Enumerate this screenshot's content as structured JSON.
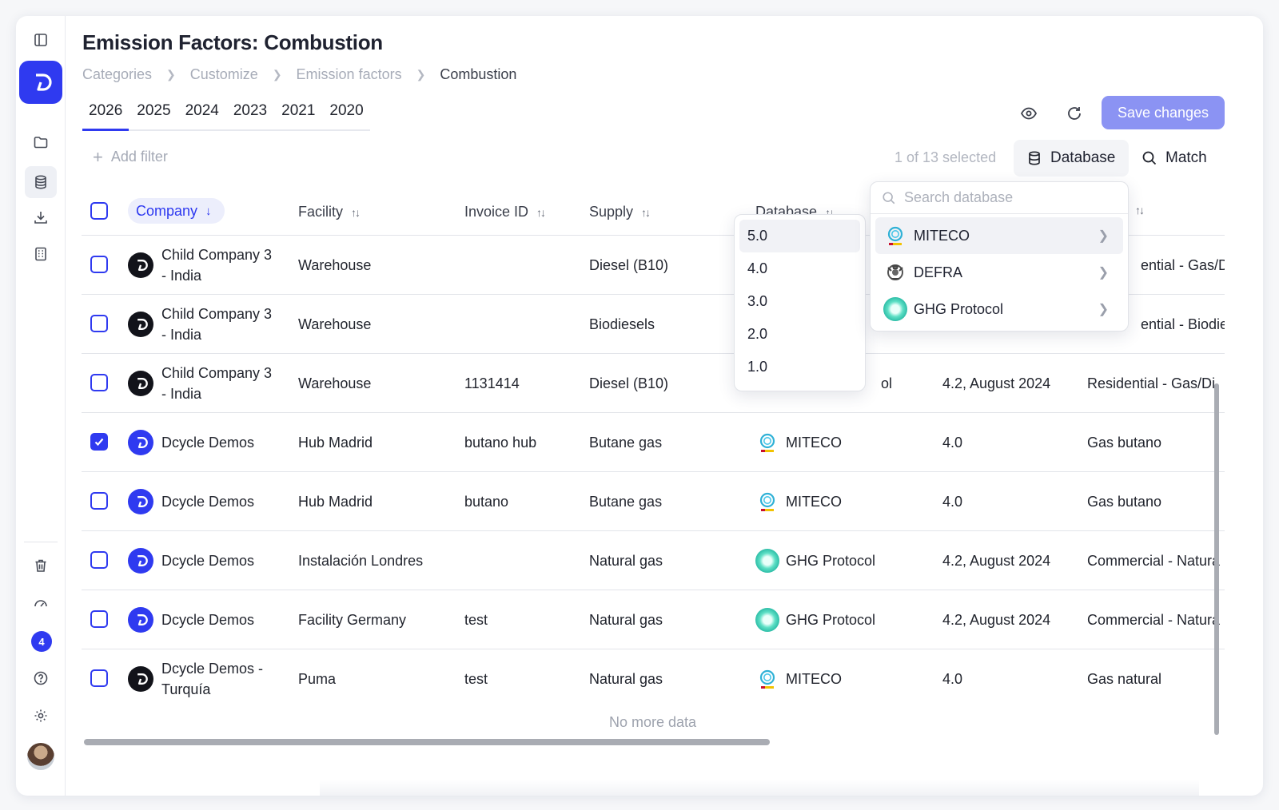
{
  "page": {
    "title": "Emission Factors: Combustion",
    "breadcrumb": [
      "Categories",
      "Customize",
      "Emission factors",
      "Combustion"
    ],
    "year_tabs": [
      "2026",
      "2025",
      "2024",
      "2023",
      "2021",
      "2020"
    ],
    "active_year": "2026"
  },
  "sidebar": {
    "notification_count": "4",
    "icons": [
      "sidebar-toggle-icon",
      "folder-icon",
      "database-icon",
      "download-icon",
      "building-icon",
      "trash-icon",
      "gauge-icon",
      "help-icon",
      "settings-icon"
    ]
  },
  "toolbar": {
    "save_label": "Save changes",
    "add_filter_label": "Add filter",
    "selected_label": "1 of 13 selected",
    "database_label": "Database",
    "match_label": "Match"
  },
  "table": {
    "headers": {
      "company": "Company",
      "facility": "Facility",
      "invoice": "Invoice ID",
      "supply": "Supply",
      "database": "Database"
    },
    "rows": [
      {
        "company": "Child Company 3",
        "company2": "- India",
        "logo": "dark",
        "facility": "Warehouse",
        "invoice": "",
        "supply": "Diesel (B10)",
        "database": "",
        "db_logo": "",
        "version": "",
        "factor": "ential - Gas/Di",
        "checked": false
      },
      {
        "company": "Child Company 3",
        "company2": "- India",
        "logo": "dark",
        "facility": "Warehouse",
        "invoice": "",
        "supply": "Biodiesels",
        "database": "",
        "db_logo": "",
        "version": "",
        "factor": "ential - Biodies",
        "checked": false
      },
      {
        "company": "Child Company 3",
        "company2": "- India",
        "logo": "dark",
        "facility": "Warehouse",
        "invoice": "1131414",
        "supply": "Diesel (B10)",
        "database": "ol",
        "db_logo": "",
        "version": "4.2, August 2024",
        "factor": "Residential - Gas/Di",
        "checked": false
      },
      {
        "company": "Dcycle Demos",
        "company2": "",
        "logo": "blue",
        "facility": "Hub Madrid",
        "invoice": "butano hub",
        "supply": "Butane gas",
        "database": "MITECO",
        "db_logo": "miteco",
        "version": "4.0",
        "factor": "Gas butano",
        "checked": true
      },
      {
        "company": "Dcycle Demos",
        "company2": "",
        "logo": "blue",
        "facility": "Hub Madrid",
        "invoice": "butano",
        "supply": "Butane gas",
        "database": "MITECO",
        "db_logo": "miteco",
        "version": "4.0",
        "factor": "Gas butano",
        "checked": false
      },
      {
        "company": "Dcycle Demos",
        "company2": "",
        "logo": "blue",
        "facility": "Instalación Londres",
        "invoice": "",
        "supply": "Natural gas",
        "database": "GHG Protocol",
        "db_logo": "ghg",
        "version": "4.2, August 2024",
        "factor": "Commercial - Natura",
        "checked": false
      },
      {
        "company": "Dcycle Demos",
        "company2": "",
        "logo": "blue",
        "facility": "Facility Germany",
        "invoice": "test",
        "supply": "Natural gas",
        "database": "GHG Protocol",
        "db_logo": "ghg",
        "version": "4.2, August 2024",
        "factor": "Commercial - Natura",
        "checked": false
      },
      {
        "company": "Dcycle Demos -",
        "company2": "Turquía",
        "logo": "dark",
        "facility": "Puma",
        "invoice": "test",
        "supply": "Natural gas",
        "database": "MITECO",
        "db_logo": "miteco",
        "version": "4.0",
        "factor": "Gas natural",
        "checked": false
      }
    ],
    "footer": "No more data"
  },
  "version_dropdown": {
    "options": [
      "5.0",
      "4.0",
      "3.0",
      "2.0",
      "1.0"
    ],
    "highlighted": "5.0"
  },
  "database_dropdown": {
    "search_placeholder": "Search database",
    "options": [
      {
        "label": "MITECO",
        "logo": "miteco"
      },
      {
        "label": "DEFRA",
        "logo": "defra"
      },
      {
        "label": "GHG Protocol",
        "logo": "ghg"
      }
    ],
    "highlighted": "MITECO"
  },
  "colors": {
    "accent": "#2f3af0",
    "save_button": "#8b93f3",
    "ghg": "#25b8a2"
  }
}
